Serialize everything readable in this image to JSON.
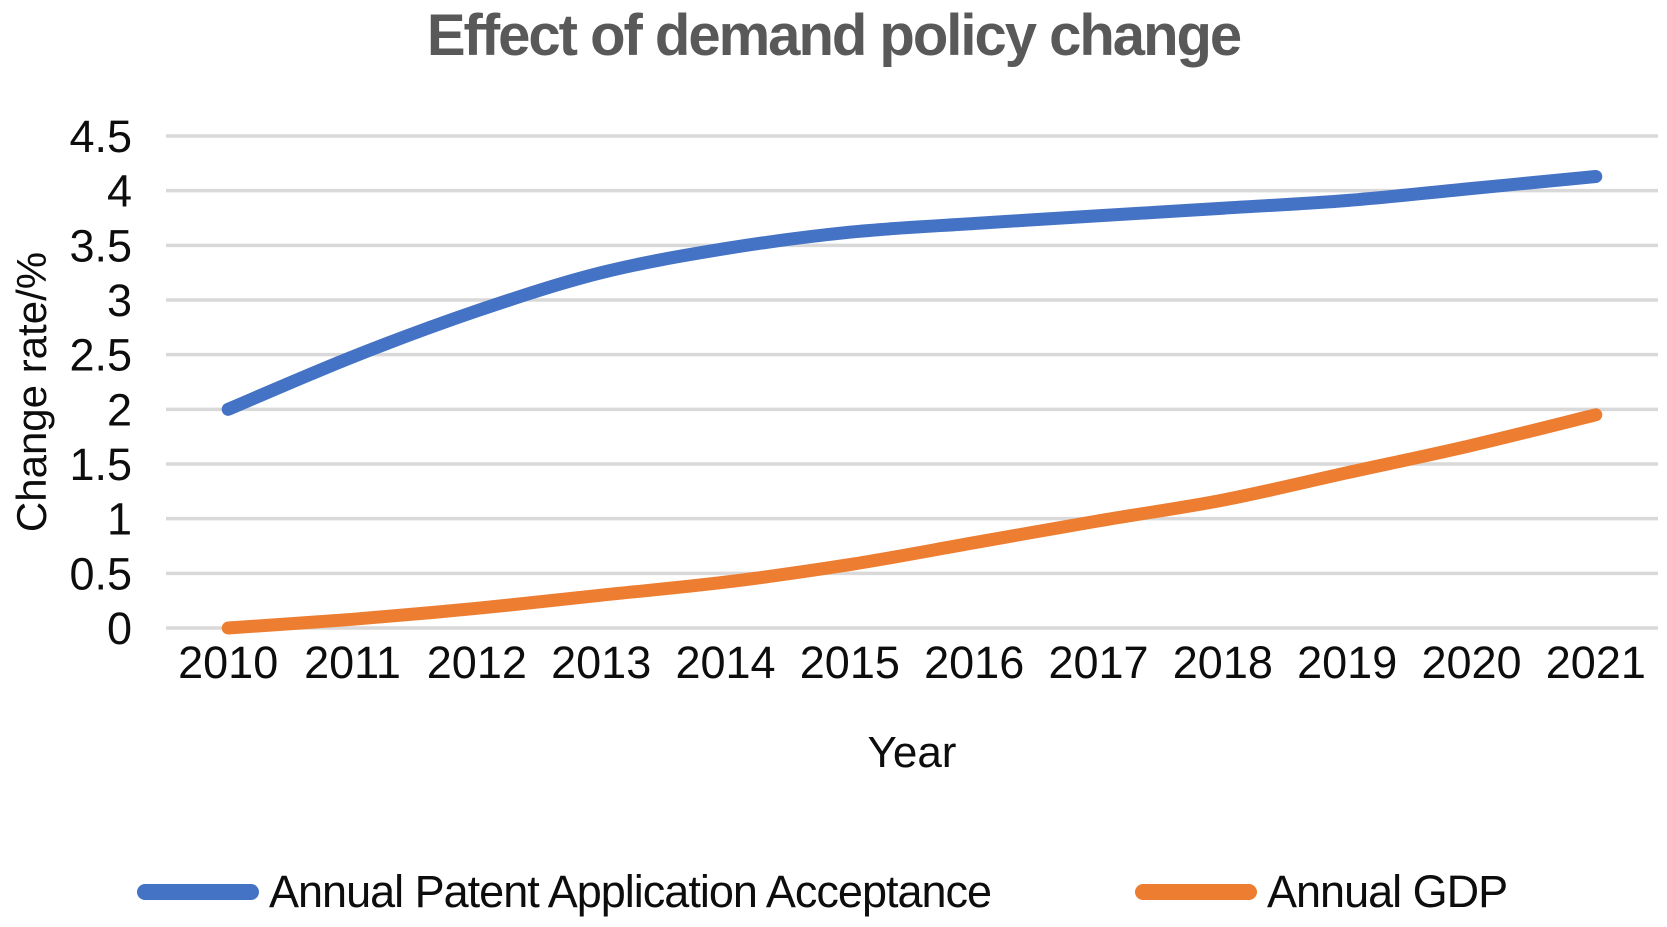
{
  "chart_data": {
    "type": "line",
    "title": "Effect of demand policy change",
    "xlabel": "Year",
    "ylabel": "Change rate/%",
    "categories": [
      "2010",
      "2011",
      "2012",
      "2013",
      "2014",
      "2015",
      "2016",
      "2017",
      "2018",
      "2019",
      "2020",
      "2021"
    ],
    "series": [
      {
        "name": "Annual Patent Application Acceptance",
        "color": "#4472C4",
        "values": [
          2.0,
          2.48,
          2.9,
          3.25,
          3.47,
          3.62,
          3.7,
          3.77,
          3.84,
          3.91,
          4.02,
          4.13
        ]
      },
      {
        "name": "Annual GDP",
        "color": "#ED7D31",
        "values": [
          0.0,
          0.08,
          0.18,
          0.3,
          0.42,
          0.58,
          0.78,
          0.98,
          1.17,
          1.42,
          1.67,
          1.95
        ]
      }
    ],
    "ylim": [
      0,
      4.5
    ],
    "yticks": [
      0,
      0.5,
      1,
      1.5,
      2,
      2.5,
      3,
      3.5,
      4,
      4.5
    ],
    "grid": "horizontal",
    "gridline_color": "#D9D9D9",
    "title_color": "#595959",
    "axis_text_color": "#0d0d0d",
    "line_smooth": true,
    "legend_position": "bottom"
  }
}
